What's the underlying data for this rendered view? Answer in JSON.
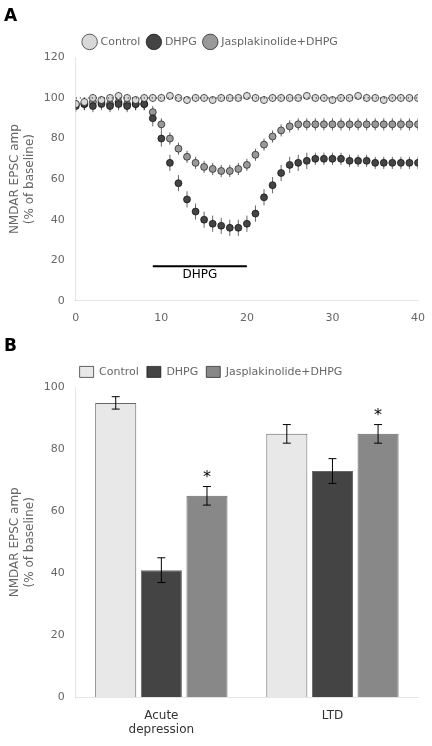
{
  "chart_data": [
    {
      "type": "scatter",
      "title": "A",
      "ylabel": "NMDAR EPSC amp\n(% of baseline)",
      "x": [
        0,
        1,
        2,
        3,
        4,
        5,
        6,
        7,
        8,
        9,
        10,
        11,
        12,
        13,
        14,
        15,
        16,
        17,
        18,
        19,
        20,
        21,
        22,
        23,
        24,
        25,
        26,
        27,
        28,
        29,
        30,
        31,
        32,
        33,
        34,
        35,
        36,
        37,
        38,
        39,
        40
      ],
      "series": [
        {
          "name": "Control",
          "color": "#d8d8d8",
          "marker": "circle",
          "values": [
            97,
            98,
            100,
            99,
            100,
            101,
            100,
            99,
            100,
            100,
            100,
            101,
            100,
            99,
            100,
            100,
            99,
            100,
            100,
            100,
            101,
            100,
            99,
            100,
            100,
            100,
            100,
            101,
            100,
            100,
            99,
            100,
            100,
            101,
            100,
            100,
            99,
            100,
            100,
            100,
            100
          ],
          "errors": [
            2,
            2,
            2,
            2,
            2,
            2,
            2,
            2,
            2,
            2,
            2,
            2,
            2,
            2,
            2,
            2,
            2,
            2,
            2,
            2,
            2,
            2,
            2,
            2,
            2,
            2,
            2,
            2,
            2,
            2,
            2,
            2,
            2,
            2,
            2,
            2,
            2,
            2,
            2,
            2,
            2
          ]
        },
        {
          "name": "DHPG",
          "color": "#444444",
          "marker": "circle",
          "values": [
            96,
            97,
            96,
            97,
            96,
            97,
            96,
            97,
            97,
            90,
            80,
            68,
            58,
            50,
            44,
            40,
            38,
            37,
            36,
            36,
            38,
            43,
            51,
            57,
            63,
            67,
            68,
            69,
            70,
            70,
            70,
            70,
            69,
            69,
            69,
            68,
            68,
            68,
            68,
            68,
            68
          ],
          "errors": [
            3,
            3,
            3,
            3,
            3,
            3,
            3,
            3,
            3,
            4,
            4,
            4,
            4,
            4,
            4,
            4,
            4,
            4,
            4,
            4,
            4,
            4,
            4,
            4,
            4,
            4,
            4,
            4,
            3,
            3,
            3,
            3,
            3,
            3,
            3,
            3,
            3,
            3,
            3,
            3,
            3
          ]
        },
        {
          "name": "Jasplakinolide+DHPG",
          "color": "#999999",
          "marker": "circle",
          "values": [
            97,
            97,
            98,
            98,
            97,
            98,
            97,
            97,
            97,
            93,
            87,
            80,
            75,
            71,
            68,
            66,
            65,
            64,
            64,
            65,
            67,
            72,
            77,
            81,
            84,
            86,
            87,
            87,
            87,
            87,
            87,
            87,
            87,
            87,
            87,
            87,
            87,
            87,
            87,
            87,
            87
          ],
          "errors": [
            3,
            3,
            3,
            3,
            3,
            3,
            3,
            3,
            3,
            3,
            3,
            3,
            3,
            3,
            3,
            3,
            3,
            3,
            3,
            3,
            3,
            3,
            3,
            3,
            3,
            3,
            3,
            3,
            3,
            3,
            3,
            3,
            3,
            3,
            3,
            3,
            3,
            3,
            3,
            3,
            3
          ]
        }
      ],
      "reference_lines": [
        {
          "y": 100,
          "line_style": "dotted"
        }
      ],
      "annotations": [
        {
          "text": "DHPG",
          "x_start": 9,
          "x_end": 20,
          "y": 17
        }
      ],
      "xlim": [
        0,
        40
      ],
      "xticks": [
        0,
        10,
        20,
        30,
        40
      ],
      "ylim": [
        0,
        120
      ],
      "yticks": [
        0,
        20,
        40,
        60,
        80,
        100,
        120
      ],
      "grid": false,
      "legend": "top"
    },
    {
      "type": "bar",
      "title": "B",
      "ylabel": "NMDAR EPSC amp\n(% of baseline)",
      "categories": [
        "Acute\ndepression",
        "LTD"
      ],
      "series": [
        {
          "name": "Control",
          "color": "#e8e8e8",
          "values": [
            95,
            85
          ],
          "errors": [
            2,
            3
          ]
        },
        {
          "name": "DHPG",
          "color": "#444444",
          "values": [
            41,
            73
          ],
          "errors": [
            4,
            4
          ]
        },
        {
          "name": "Jasplakinolide+DHPG",
          "color": "#888888",
          "values": [
            65,
            85
          ],
          "errors": [
            3,
            3
          ]
        }
      ],
      "annotations": [
        {
          "text": "*",
          "category": "Acute\ndepression",
          "series": "Jasplakinolide+DHPG"
        },
        {
          "text": "*",
          "category": "LTD",
          "series": "Jasplakinolide+DHPG"
        }
      ],
      "ylim": [
        0,
        100
      ],
      "yticks": [
        0,
        20,
        40,
        60,
        80,
        100
      ],
      "grid": false,
      "legend": "top"
    }
  ]
}
